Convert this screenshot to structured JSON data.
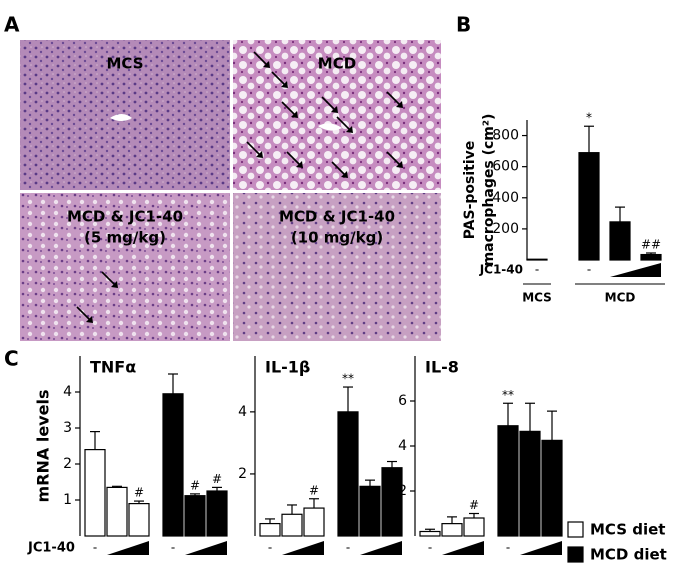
{
  "panel_labels": {
    "a": "A",
    "b": "B",
    "c": "C"
  },
  "histology": [
    {
      "lines": [
        "MCS"
      ]
    },
    {
      "lines": [
        "MCD"
      ]
    },
    {
      "lines": [
        "MCD & JC1-40",
        "(5 mg/kg)"
      ]
    },
    {
      "lines": [
        "MCD & JC1-40",
        "(10 mg/kg)"
      ]
    }
  ],
  "c_treatment_label": "JC1-40",
  "chart_data": [
    {
      "type": "bar",
      "ylabel": [
        "PAS-positive",
        "macrophages (cm²)"
      ],
      "treatment_label": "JC1-40",
      "categories": [
        "-",
        "-",
        null,
        null
      ],
      "groups": [
        "MCS",
        "MCD"
      ],
      "values": [
        5,
        690,
        245,
        35
      ],
      "errors": [
        null,
        170,
        95,
        10
      ],
      "annotations": [
        null,
        "*",
        null,
        "##"
      ],
      "color": "#000000",
      "ylim": [
        0,
        900
      ],
      "yticks": [
        200,
        400,
        600,
        800
      ]
    },
    {
      "type": "bar",
      "title": "TNFα",
      "ylabel": "mRNA levels",
      "categories": [
        "-",
        null,
        null
      ],
      "series": [
        {
          "name": "MCS diet",
          "color": "#ffffff",
          "values": [
            2.4,
            1.35,
            0.9
          ],
          "errors": [
            0.5,
            0.03,
            0.07
          ],
          "annotations": [
            null,
            null,
            "#"
          ]
        },
        {
          "name": "MCD diet",
          "color": "#000000",
          "values": [
            3.95,
            1.12,
            1.25
          ],
          "errors": [
            0.55,
            0.05,
            0.1
          ],
          "annotations": [
            null,
            "#",
            "#"
          ]
        }
      ],
      "ylim": [
        0,
        5
      ],
      "yticks": [
        1,
        2,
        3,
        4
      ]
    },
    {
      "type": "bar",
      "title": "IL-1β",
      "categories": [
        "-",
        null,
        null
      ],
      "series": [
        {
          "color": "#ffffff",
          "values": [
            0.4,
            0.7,
            0.9
          ],
          "errors": [
            0.15,
            0.3,
            0.3
          ],
          "annotations": [
            null,
            null,
            "#"
          ]
        },
        {
          "color": "#000000",
          "values": [
            4.0,
            1.6,
            2.2
          ],
          "errors": [
            0.8,
            0.2,
            0.2
          ],
          "annotations": [
            "**",
            null,
            null
          ]
        }
      ],
      "ylim": [
        0,
        5.8
      ],
      "yticks": [
        2,
        4
      ]
    },
    {
      "type": "bar",
      "title": "IL-8",
      "categories": [
        "-",
        null,
        null
      ],
      "series": [
        {
          "color": "#ffffff",
          "values": [
            0.2,
            0.55,
            0.8
          ],
          "errors": [
            0.1,
            0.3,
            0.2
          ],
          "annotations": [
            null,
            null,
            "#"
          ]
        },
        {
          "color": "#000000",
          "values": [
            4.9,
            4.65,
            4.25
          ],
          "errors": [
            1.0,
            1.25,
            1.3
          ],
          "annotations": [
            "**",
            null,
            null
          ]
        }
      ],
      "ylim": [
        0,
        8
      ],
      "yticks": [
        2,
        4,
        6
      ]
    }
  ]
}
